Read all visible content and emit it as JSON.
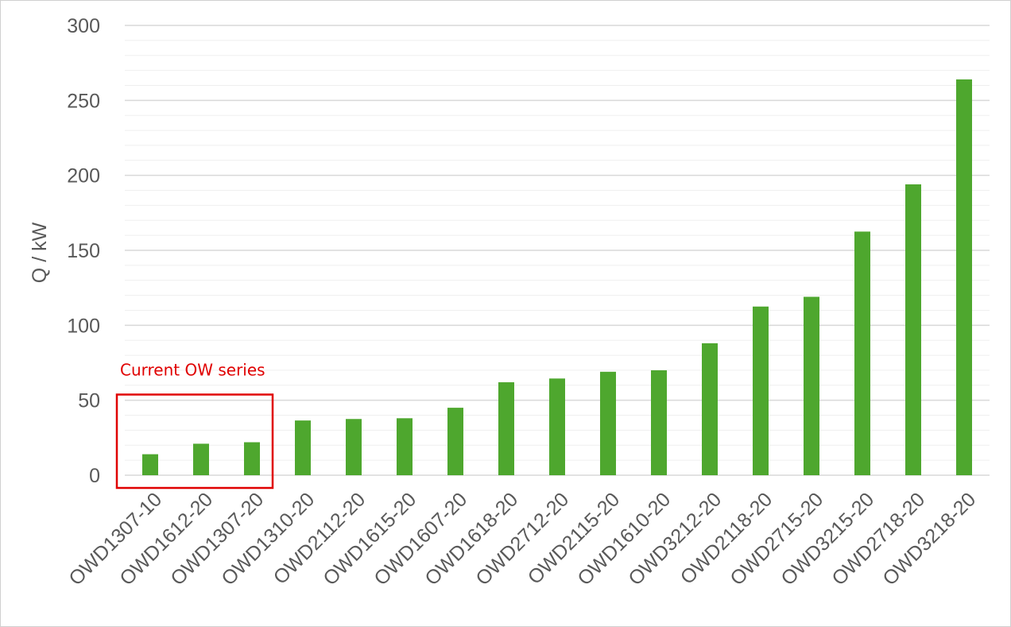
{
  "chart_data": {
    "type": "bar",
    "title": "",
    "xlabel": "",
    "ylabel": "Q / kW",
    "ylim": [
      0,
      300
    ],
    "yticks": [
      0,
      50,
      100,
      150,
      200,
      250,
      300
    ],
    "minor_grid_step": 10,
    "grid": true,
    "legend": "none",
    "categories": [
      "OWD1307-10",
      "OWD1612-20",
      "OWD1307-20",
      "OWD1310-20",
      "OWD2112-20",
      "OWD1615-20",
      "OWD1607-20",
      "OWD1618-20",
      "OWD2712-20",
      "OWD2115-20",
      "OWD1610-20",
      "OWD3212-20",
      "OWD2118-20",
      "OWD2715-20",
      "OWD3215-20",
      "OWD2718-20",
      "OWD3218-20"
    ],
    "series": [
      {
        "values": [
          14,
          21,
          22,
          36.5,
          37.5,
          38,
          45,
          62,
          64.5,
          69,
          70,
          88,
          112.5,
          119,
          162.5,
          194,
          264
        ]
      }
    ],
    "annotations": [
      {
        "text": "Current OW series",
        "covers_categories": [
          "OWD1307-10",
          "OWD1612-20",
          "OWD1307-20"
        ]
      }
    ]
  },
  "colors": {
    "bar": "#4ea72e",
    "grid_major": "#d9d9d9",
    "grid_minor": "#efefef",
    "axis_text": "#595959",
    "annotation": "#e00000",
    "frame": "#d0d0d0"
  }
}
